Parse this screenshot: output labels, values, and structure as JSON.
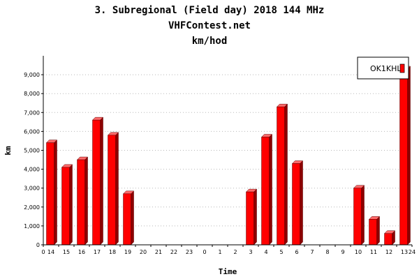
{
  "chart_data": {
    "type": "bar",
    "title": "3. Subregional (Field day) 2018 144 MHz",
    "subtitle": "VHFContest.net",
    "subtitle2": "km/hod",
    "xlabel": "Time",
    "ylabel": "km",
    "ylim": [
      0,
      10000
    ],
    "y_ticks": [
      0,
      1000,
      2000,
      3000,
      4000,
      5000,
      6000,
      7000,
      8000,
      9000
    ],
    "y_tick_labels": [
      "0",
      "1,000",
      "2,000",
      "3,000",
      "4,000",
      "5,000",
      "6,000",
      "7,000",
      "8,000",
      "9,000"
    ],
    "x_start_label": "0",
    "x_end_label": "24",
    "categories": [
      "14",
      "15",
      "16",
      "17",
      "18",
      "19",
      "20",
      "21",
      "22",
      "23",
      "0",
      "1",
      "2",
      "3",
      "4",
      "5",
      "6",
      "7",
      "8",
      "9",
      "10",
      "11",
      "12",
      "13"
    ],
    "grid": true,
    "legend_position": "top-right",
    "series": [
      {
        "name": "OK1KHL",
        "color": "#ff0000",
        "values": [
          5400,
          4100,
          4500,
          6600,
          5800,
          2700,
          0,
          0,
          0,
          0,
          0,
          0,
          0,
          2800,
          5700,
          7300,
          4300,
          0,
          0,
          0,
          3000,
          1350,
          600,
          9300
        ]
      }
    ]
  }
}
